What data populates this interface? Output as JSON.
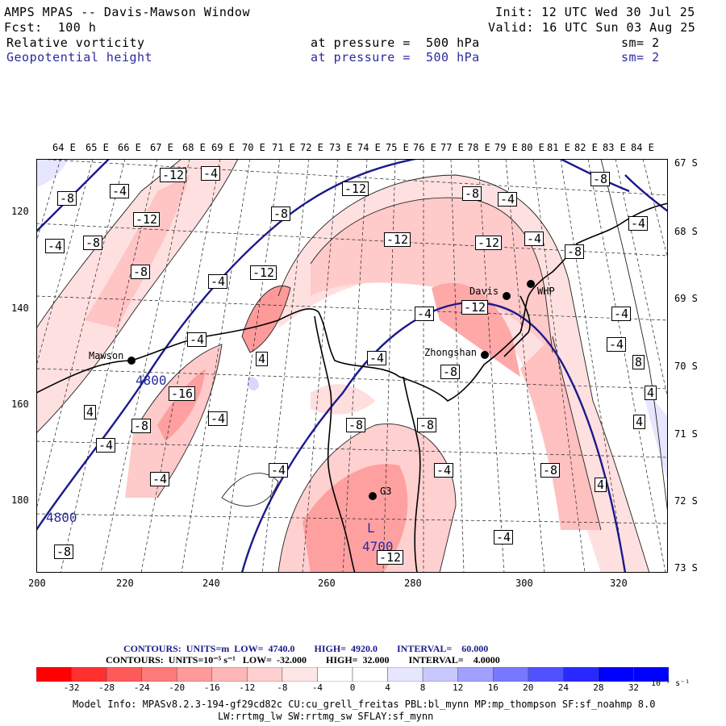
{
  "header": {
    "title": "AMPS MPAS -- Davis-Mawson Window",
    "forecast": "Fcst:  100 h",
    "init": "Init: 12 UTC Wed 30 Jul 25",
    "valid": "Valid: 16 UTC Sun 03 Aug 25",
    "field1_name": "Relative vorticity",
    "field1_level": "at pressure =  500 hPa",
    "field1_smooth": "sm= 2",
    "field2_name": "Geopotential height",
    "field2_level": "at pressure =  500 hPa",
    "field2_smooth": "sm= 2"
  },
  "axes": {
    "top_longitudes": [
      "64 E",
      "65 E",
      "66 E",
      "67 E",
      "68 E",
      "69 E",
      "70 E",
      "71 E",
      "72 E",
      "73 E",
      "74 E",
      "75 E",
      "76 E",
      "77 E",
      "78 E",
      "79 E",
      "80 E",
      "81 E",
      "82 E",
      "83 E",
      "84 E"
    ],
    "right_latitudes": [
      "67 S",
      "68 S",
      "69 S",
      "70 S",
      "71 S",
      "72 S",
      "73 S"
    ],
    "bottom_ticks": [
      "200",
      "220",
      "240",
      "260",
      "280",
      "300",
      "320"
    ],
    "left_ticks": [
      "120",
      "140",
      "160",
      "180"
    ]
  },
  "places": {
    "mawson": "Mawson",
    "davis": "Davis",
    "whp": "WHP",
    "zhongshan": "Zhongshan",
    "g3": "G3"
  },
  "map_labels": {
    "low_symbol": "L",
    "low_value": "4700",
    "height_a": "4800",
    "height_b": "4800",
    "vort": [
      "-12",
      "-4",
      "-4",
      "-12",
      "-8",
      "-4",
      "-8",
      "-8",
      "-12",
      "-8",
      "-12",
      "-8",
      "-12",
      "-4",
      "-4",
      "-12",
      "-4",
      "-8",
      "-8",
      "-4",
      "-4",
      "-12",
      "4",
      "-4",
      "-16",
      "4",
      "-8",
      "-4",
      "-8",
      "-8",
      "4",
      "-4",
      "-4",
      "-4",
      "-4",
      "4",
      "-4",
      "-8",
      "-4",
      "-8",
      "-12",
      "-4",
      "8",
      "-8",
      "4",
      "-4"
    ]
  },
  "legend": {
    "contours1": "CONTOURS:  UNITS=m  LOW=  4740.0        HIGH=  4920.0        INTERVAL=    60.000",
    "contours2": "CONTOURS:  UNITS=10⁻⁵ s⁻¹   LOW=  -32.000        HIGH=  32.000        INTERVAL=    4.0000",
    "colorbar_labels": [
      "-32",
      "-28",
      "-24",
      "-20",
      "-16",
      "-12",
      "-8",
      "-4",
      "0",
      "4",
      "8",
      "12",
      "16",
      "20",
      "24",
      "28",
      "32"
    ],
    "colorbar_colors": [
      "#ff0000",
      "#ff3030",
      "#ff5a5a",
      "#ff7a7a",
      "#ff9a9a",
      "#ffb6b6",
      "#ffcfcf",
      "#ffe6e6",
      "#ffffff",
      "#ffffff",
      "#e6e6ff",
      "#c8c8ff",
      "#a0a0ff",
      "#7878ff",
      "#5050ff",
      "#2828ff",
      "#0000ff"
    ],
    "units": "10⁻⁵ s⁻¹"
  },
  "footer": {
    "model_info_1": "Model Info: MPASv8.2.3-194-gf29cd82c CU:cu_grell_freitas PBL:bl_mynn MP:mp_thompson SF:sf_noahmp 8.0",
    "model_info_2": "LW:rrtmg_lw SW:rrtmg_sw SFLAY:sf_mynn"
  },
  "colors": {
    "height_contour": "#1a1a8c",
    "coast": "#000000",
    "shade_light": "#ffe0e0",
    "shade_mid": "#ffb3b3",
    "shade_strong": "#ff8f8f"
  }
}
